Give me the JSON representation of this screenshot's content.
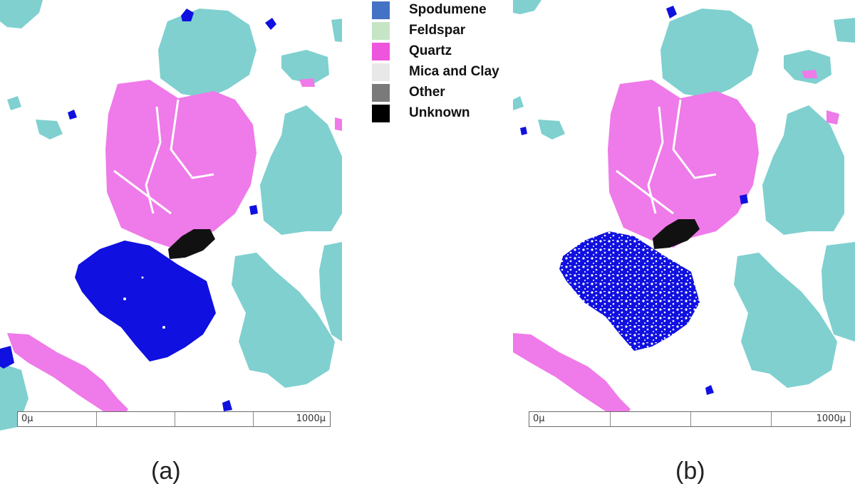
{
  "legend": {
    "items": [
      {
        "label": "Spodumene",
        "color": "#4472C4"
      },
      {
        "label": "Feldspar",
        "color": "#C6E5C5"
      },
      {
        "label": "Quartz",
        "color": "#EE55DD"
      },
      {
        "label": "Mica and Clay",
        "color": "#E8E8E8"
      },
      {
        "label": "Other",
        "color": "#7A7A7A"
      },
      {
        "label": "Unknown",
        "color": "#000000"
      }
    ]
  },
  "colors": {
    "spodumene_map": "#1010E0",
    "feldspar_map": "#80D0D0",
    "quartz_map": "#EF7AE9",
    "unknown_map": "#111111",
    "scalebar_border": "#6b6b6b"
  },
  "scalebar": {
    "start_label": "0µ",
    "end_label": "1000µ"
  },
  "panels": [
    {
      "caption": "(a)"
    },
    {
      "caption": "(b)"
    }
  ]
}
